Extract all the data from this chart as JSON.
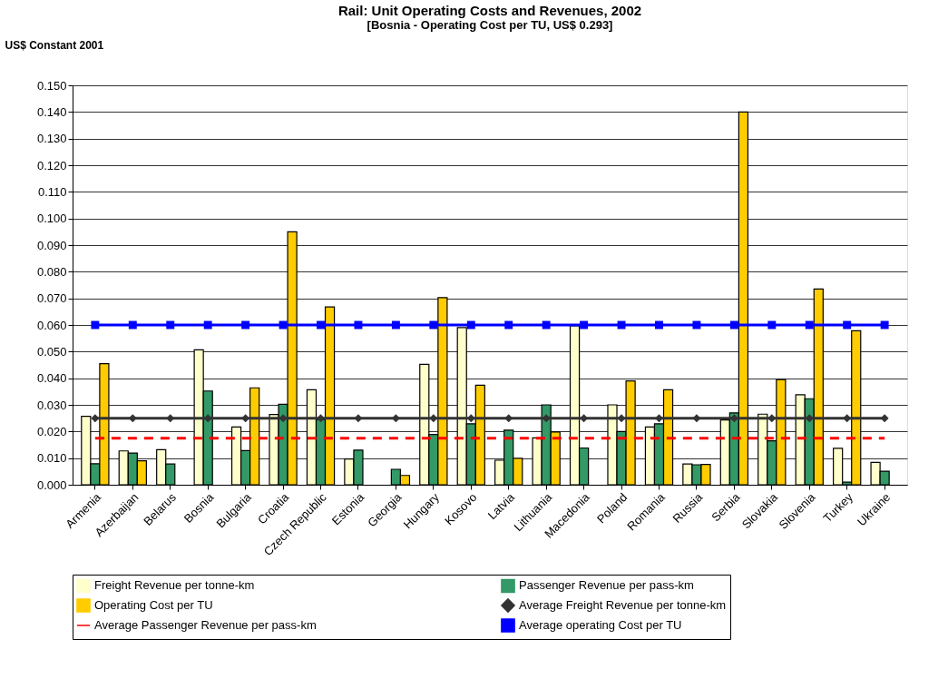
{
  "chart_data": {
    "type": "bar",
    "title": "Rail: Unit Operating Costs and Revenues, 2002",
    "subtitle": "[Bosnia - Operating Cost per TU, US$ 0.293]",
    "ylabel": "US$ Constant 2001",
    "categories": [
      "Armenia",
      "Azerbaijan",
      "Belarus",
      "Bosnia",
      "Bulgaria",
      "Croatia",
      "Czech Republic",
      "Estonia",
      "Georgia",
      "Hungary",
      "Kosovo",
      "Latvia",
      "Lithuania",
      "Macedonia",
      "Poland",
      "Romania",
      "Russia",
      "Serbia",
      "Slovakia",
      "Slovenia",
      "Turkey",
      "Ukraine"
    ],
    "series": [
      {
        "name": "Freight Revenue per tonne-km",
        "type": "bar",
        "color": "#ffffcc",
        "values": [
          0.0257,
          0.0127,
          0.0132,
          0.0507,
          0.0217,
          0.0264,
          0.0357,
          0.0097,
          null,
          0.0452,
          0.059,
          0.0092,
          0.0176,
          0.0597,
          0.03,
          0.0217,
          0.0078,
          0.0243,
          0.0265,
          0.0338,
          0.0137,
          0.0084
        ]
      },
      {
        "name": "Passenger Revenue per pass-km",
        "type": "bar",
        "color": "#339966",
        "values": [
          0.0079,
          0.0119,
          0.0078,
          0.0352,
          0.0128,
          0.0302,
          0.0245,
          0.013,
          0.0058,
          0.0189,
          0.0229,
          0.0205,
          0.03,
          0.0138,
          0.02,
          0.0229,
          0.0075,
          0.027,
          0.0165,
          0.0323,
          0.001,
          0.0051
        ]
      },
      {
        "name": "Operating Cost per TU",
        "type": "bar",
        "color": "#ffcc00",
        "values": [
          0.0455,
          0.009,
          null,
          null,
          0.0364,
          0.095,
          0.0668,
          null,
          0.0035,
          0.0703,
          0.0374,
          0.0099,
          0.0198,
          null,
          0.039,
          0.0357,
          0.0076,
          0.14,
          0.0395,
          0.0735,
          0.0578,
          null
        ]
      },
      {
        "name": "Average Freight Revenue per tonne-km",
        "type": "line",
        "color": "#333333",
        "marker": "diamond",
        "line_style": "solid",
        "values": [
          0.025,
          0.025,
          0.025,
          0.025,
          0.025,
          0.025,
          0.025,
          0.025,
          0.025,
          0.025,
          0.025,
          0.025,
          0.025,
          0.025,
          0.025,
          0.025,
          0.025,
          0.025,
          0.025,
          0.025,
          0.025,
          0.025
        ]
      },
      {
        "name": "Average Passenger Revenue per pass-km",
        "type": "line",
        "color": "#ff0000",
        "marker": "none",
        "line_style": "dashed",
        "values": [
          0.0175,
          0.0175,
          0.0175,
          0.0175,
          0.0175,
          0.0175,
          0.0175,
          0.0175,
          0.0175,
          0.0175,
          0.0175,
          0.0175,
          0.0175,
          0.0175,
          0.0175,
          0.0175,
          0.0175,
          0.0175,
          0.0175,
          0.0175,
          0.0175,
          0.0175
        ]
      },
      {
        "name": "Average operating Cost per TU",
        "type": "line",
        "color": "#0000ff",
        "marker": "square",
        "line_style": "solid",
        "values": [
          0.06,
          0.06,
          0.06,
          0.06,
          0.06,
          0.06,
          0.06,
          0.06,
          0.06,
          0.06,
          0.06,
          0.06,
          0.06,
          0.06,
          0.06,
          0.06,
          0.06,
          0.06,
          0.06,
          0.06,
          0.06,
          0.06
        ]
      }
    ],
    "ylim": [
      0,
      0.15
    ],
    "yticks": [
      {
        "value": 0,
        "label": "0.000"
      },
      {
        "value": 0.01,
        "label": "0.010"
      },
      {
        "value": 0.02,
        "label": "0.020"
      },
      {
        "value": 0.03,
        "label": "0.030"
      },
      {
        "value": 0.04,
        "label": "0.040"
      },
      {
        "value": 0.05,
        "label": "0.050"
      },
      {
        "value": 0.06,
        "label": "0.060"
      },
      {
        "value": 0.07,
        "label": "0.070"
      },
      {
        "value": 0.08,
        "label": "0.080"
      },
      {
        "value": 0.09,
        "label": "0.090"
      },
      {
        "value": 0.1,
        "label": "0.100"
      },
      {
        "value": 0.11,
        "label": "0.110"
      },
      {
        "value": 0.12,
        "label": "0.120"
      },
      {
        "value": 0.13,
        "label": "0.130"
      },
      {
        "value": 0.14,
        "label": "0.140"
      },
      {
        "value": 0.15,
        "label": "0.150"
      }
    ],
    "grid": "y",
    "legend": "bottom"
  }
}
